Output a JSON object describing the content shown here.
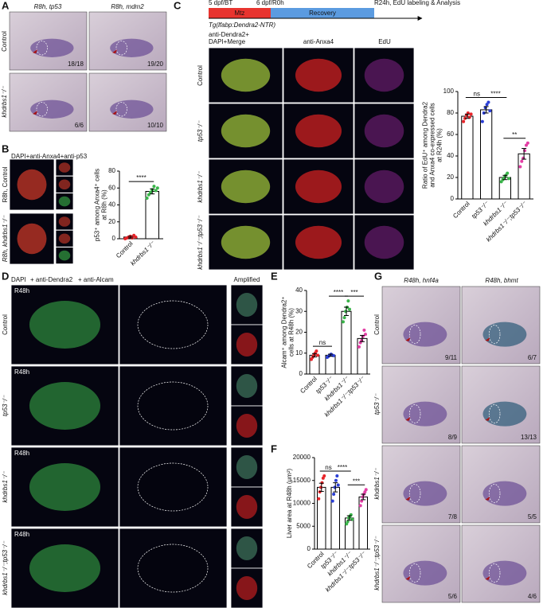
{
  "panel_labels": [
    "A",
    "B",
    "C",
    "D",
    "E",
    "F",
    "G"
  ],
  "panel_a": {
    "columns": [
      "R8h, tp53",
      "R8h, mdm2"
    ],
    "rows": [
      "Control",
      "khdrbs1⁻/⁻"
    ],
    "counts": [
      "18/18",
      "19/20",
      "6/6",
      "10/10"
    ]
  },
  "panel_b": {
    "stain": "DAPI+anti-Anxa4+anti-p53",
    "rows": [
      "R8h, Control",
      "R8h, khdrbs1⁻/⁻"
    ]
  },
  "panel_c": {
    "timeline": [
      "5 dpf/BT",
      "6 dpf/R0h",
      "R24h, EdU labeling & Analysis"
    ],
    "phases": [
      "Mtz",
      "Recovery"
    ],
    "transgene": "Tg(lfabp:Dendra2-NTR)",
    "columns": [
      "anti-Dendra2+",
      "DAPI+Merge",
      "anti-Anxa4",
      "EdU"
    ],
    "rows": [
      "Control",
      "tp53⁻/⁻",
      "khdrbs1⁻/⁻",
      "khdrbs1⁻/⁻;tp53⁻/⁻"
    ]
  },
  "panel_d": {
    "legend": [
      "DAPI",
      "+ anti-Dendra2",
      "+ anti-Alcam"
    ],
    "amplified": "Amplified",
    "time": "R48h",
    "rows": [
      "Control",
      "tp53⁻/⁻",
      "khdrbs1⁻/⁻",
      "khdrbs1⁻/⁻;tp53⁻/⁻"
    ]
  },
  "panel_g": {
    "columns": [
      "R48h, hnf4a",
      "R48h, bhmt"
    ],
    "rows": [
      "Control",
      "tp53⁻/⁻",
      "khdrbs1⁻/⁻",
      "khdrbs1⁻/⁻;tp53⁻/⁻"
    ],
    "counts": [
      "9/11",
      "6/7",
      "8/9",
      "13/13",
      "7/8",
      "5/5",
      "5/6",
      "4/6"
    ]
  },
  "chart_data": [
    {
      "type": "bar",
      "ylabel": [
        "p53⁺ among Anxa4⁺ cells",
        "at R8h (%)"
      ],
      "categories": [
        "Control",
        "khdrbs1⁻/⁻"
      ],
      "values": [
        2,
        56
      ],
      "errors": [
        1,
        3
      ],
      "points": [
        [
          0,
          1,
          2,
          3,
          1,
          4,
          2
        ],
        [
          48,
          52,
          55,
          58,
          62,
          57,
          60
        ]
      ],
      "colors": [
        "#e8252a",
        "#3ab54a"
      ],
      "ylim": [
        0,
        80
      ],
      "yticks": [
        0,
        20,
        40,
        60,
        80
      ],
      "significance": [
        {
          "pair": [
            0,
            1
          ],
          "label": "****"
        }
      ]
    },
    {
      "type": "bar",
      "ylabel": [
        "Ratio of EdU⁺ among Dendra2",
        "and Anxa4 co-expressed cells",
        "at R24h (%)"
      ],
      "categories": [
        "Control",
        "tp53⁻/⁻",
        "khdrbs1⁻/⁻",
        "khdrbs1⁻/⁻;tp53⁻/⁻"
      ],
      "values": [
        77,
        83,
        20,
        42
      ],
      "errors": [
        2,
        3,
        2,
        5
      ],
      "points": [
        [
          72,
          75,
          78,
          80,
          76,
          79
        ],
        [
          72,
          80,
          85,
          88,
          90,
          82
        ],
        [
          16,
          18,
          20,
          22,
          24,
          19
        ],
        [
          30,
          35,
          38,
          45,
          50,
          52
        ]
      ],
      "colors": [
        "#e8252a",
        "#2b3fd6",
        "#3ab54a",
        "#e33fa5"
      ],
      "ylim": [
        0,
        100
      ],
      "yticks": [
        0,
        20,
        40,
        60,
        80,
        100
      ],
      "significance": [
        {
          "pair": [
            0,
            1
          ],
          "label": "ns"
        },
        {
          "pair": [
            1,
            2
          ],
          "label": "****"
        },
        {
          "pair": [
            2,
            3
          ],
          "label": "**"
        }
      ]
    },
    {
      "type": "bar",
      "ylabel": [
        "Alcam⁺ among Dendra2⁺",
        "cells at R48h (%)"
      ],
      "categories": [
        "Control",
        "tp53⁻/⁻",
        "khdrbs1⁻/⁻",
        "khdrbs1⁻/⁻;tp53⁻/⁻"
      ],
      "values": [
        9,
        9,
        30,
        17
      ],
      "errors": [
        0.8,
        0.5,
        2,
        1.5
      ],
      "points": [
        [
          7,
          8,
          9,
          10,
          11,
          9
        ],
        [
          8,
          8.5,
          9,
          9.5,
          9,
          8.8
        ],
        [
          25,
          27,
          30,
          32,
          35,
          31
        ],
        [
          13,
          15,
          16,
          18,
          21,
          19
        ]
      ],
      "colors": [
        "#e8252a",
        "#2b3fd6",
        "#3ab54a",
        "#e33fa5"
      ],
      "ylim": [
        0,
        40
      ],
      "yticks": [
        0,
        10,
        20,
        30,
        40
      ],
      "significance": [
        {
          "pair": [
            0,
            1
          ],
          "label": "ns"
        },
        {
          "pair": [
            1,
            2
          ],
          "label": "****"
        },
        {
          "pair": [
            2,
            3
          ],
          "label": "***"
        }
      ]
    },
    {
      "type": "bar",
      "ylabel": [
        "Liver area at R48h (μm²)"
      ],
      "categories": [
        "Control",
        "tp53⁻/⁻",
        "khdrbs1⁻/⁻",
        "khdrbs1⁻/⁻;tp53⁻/⁻"
      ],
      "values": [
        13500,
        13500,
        6800,
        11400
      ],
      "errors": [
        900,
        1000,
        500,
        600
      ],
      "points": [
        [
          11000,
          12500,
          13500,
          14500,
          15500,
          16000
        ],
        [
          10500,
          12000,
          13500,
          15000,
          16000,
          14000
        ],
        [
          5500,
          6000,
          6800,
          7200,
          7500,
          6500
        ],
        [
          9500,
          10500,
          11400,
          12000,
          12500,
          13000
        ]
      ],
      "colors": [
        "#e8252a",
        "#2b3fd6",
        "#3ab54a",
        "#e33fa5"
      ],
      "ylim": [
        0,
        20000
      ],
      "yticks": [
        0,
        5000,
        10000,
        15000,
        20000
      ],
      "significance": [
        {
          "pair": [
            0,
            1
          ],
          "label": "ns"
        },
        {
          "pair": [
            1,
            2
          ],
          "label": "****"
        },
        {
          "pair": [
            2,
            3
          ],
          "label": "***"
        }
      ]
    }
  ]
}
